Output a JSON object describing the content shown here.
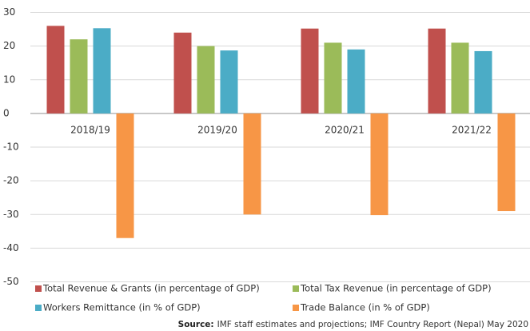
{
  "chart_data": {
    "type": "bar",
    "categories": [
      "2018/19",
      "2019/20",
      "2020/21",
      "2021/22"
    ],
    "series": [
      {
        "name": "Total Revenue & Grants (in percentage of GDP)",
        "color": "#c0504d",
        "values": [
          26,
          24,
          25.2,
          25.2
        ]
      },
      {
        "name": "Total Tax Revenue (in percentage of GDP)",
        "color": "#9bbb59",
        "values": [
          22,
          20,
          21,
          21
        ]
      },
      {
        "name": "Workers Remittance (in % of GDP)",
        "color": "#4bacc6",
        "values": [
          25.3,
          18.7,
          19,
          18.5
        ]
      },
      {
        "name": "Trade Balance (in % of GDP)",
        "color": "#f79646",
        "values": [
          -37,
          -30,
          -30.2,
          -29
        ]
      }
    ],
    "ylim": [
      -50,
      30
    ],
    "yticks": [
      30,
      20,
      10,
      0,
      -10,
      -20,
      -30,
      -40,
      -50
    ],
    "grid": true,
    "source_label": "Source:",
    "source": "IMF staff estimates and projections; IMF Country Report (Nepal) May 2020"
  }
}
